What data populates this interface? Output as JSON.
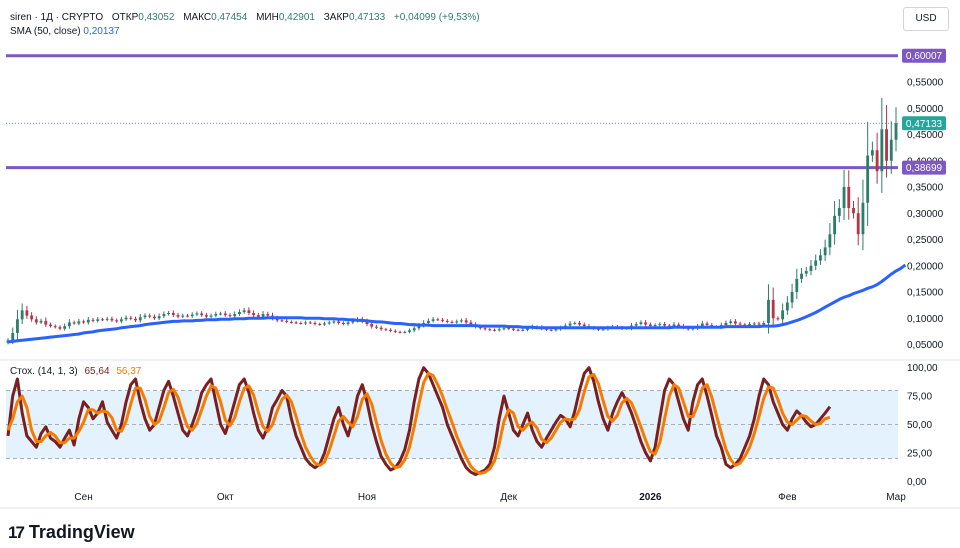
{
  "header": {
    "symbol": "siren · 1Д · CRYPTO",
    "open_label": "ОТКР",
    "open": "0,43052",
    "high_label": "МАКС",
    "high": "0,47454",
    "low_label": "МИН",
    "low": "0,42901",
    "close_label": "ЗАКР",
    "close": "0,47133",
    "change": "+0,04099 (+9,53%)"
  },
  "sma": {
    "label": "SMA (50, close)",
    "value": "0,20137"
  },
  "currency": "USD",
  "stoch": {
    "label": "Стох. (14, 1, 3)",
    "k": "65,64",
    "d": "56,37"
  },
  "brand": "TradingView",
  "colors": {
    "up": "#26a69a",
    "down": "#b2354a",
    "candle_up": "#2e7d6b",
    "sma": "#2962ff",
    "hline": "#7e57c2",
    "stoch_k": "#7a1f1f",
    "stoch_d": "#f57c00",
    "band_fill": "#e3f2fd",
    "price_badge": "#26a69a"
  },
  "chart_data": [
    {
      "type": "candlestick",
      "title": "siren · 1Д · CRYPTO",
      "ylabel": "USD",
      "ylim": [
        0.03,
        0.63
      ],
      "x_tick_labels": [
        "Сен",
        "Окт",
        "Ноя",
        "Дек",
        "2026",
        "Фев",
        "Мар"
      ],
      "x_tick_index": [
        16,
        46,
        76,
        106,
        136,
        165,
        188
      ],
      "y_ticks": [
        {
          "value": 0.05,
          "label": "0,05000"
        },
        {
          "value": 0.1,
          "label": "0,10000"
        },
        {
          "value": 0.15,
          "label": "0,15000"
        },
        {
          "value": 0.2,
          "label": "0,20000"
        },
        {
          "value": 0.25,
          "label": "0,25000"
        },
        {
          "value": 0.3,
          "label": "0,30000"
        },
        {
          "value": 0.35,
          "label": "0,35000"
        },
        {
          "value": 0.4,
          "label": "0,40000"
        },
        {
          "value": 0.45,
          "label": "0,45000"
        },
        {
          "value": 0.5,
          "label": "0,50000"
        },
        {
          "value": 0.55,
          "label": "0,55000"
        }
      ],
      "horizontal_lines": [
        {
          "value": 0.60007,
          "label": "0,60007"
        },
        {
          "value": 0.38699,
          "label": "0,38699"
        }
      ],
      "last_price": {
        "value": 0.47133,
        "label": "0,47133"
      },
      "close_series": [
        0.058,
        0.072,
        0.098,
        0.115,
        0.105,
        0.098,
        0.092,
        0.095,
        0.088,
        0.085,
        0.083,
        0.08,
        0.085,
        0.092,
        0.09,
        0.094,
        0.092,
        0.097,
        0.095,
        0.098,
        0.097,
        0.099,
        0.096,
        0.094,
        0.098,
        0.101,
        0.099,
        0.096,
        0.102,
        0.105,
        0.103,
        0.1,
        0.104,
        0.108,
        0.11,
        0.106,
        0.103,
        0.105,
        0.104,
        0.107,
        0.109,
        0.106,
        0.103,
        0.105,
        0.108,
        0.109,
        0.106,
        0.104,
        0.108,
        0.112,
        0.115,
        0.11,
        0.106,
        0.103,
        0.108,
        0.105,
        0.1,
        0.096,
        0.095,
        0.093,
        0.092,
        0.091,
        0.09,
        0.092,
        0.091,
        0.089,
        0.088,
        0.09,
        0.092,
        0.094,
        0.091,
        0.089,
        0.092,
        0.095,
        0.098,
        0.094,
        0.089,
        0.084,
        0.082,
        0.079,
        0.078,
        0.076,
        0.074,
        0.073,
        0.074,
        0.077,
        0.081,
        0.086,
        0.091,
        0.095,
        0.098,
        0.097,
        0.095,
        0.093,
        0.092,
        0.094,
        0.096,
        0.092,
        0.088,
        0.084,
        0.081,
        0.079,
        0.078,
        0.077,
        0.079,
        0.081,
        0.08,
        0.078,
        0.077,
        0.078,
        0.081,
        0.084,
        0.083,
        0.08,
        0.078,
        0.077,
        0.079,
        0.082,
        0.086,
        0.09,
        0.091,
        0.088,
        0.085,
        0.082,
        0.08,
        0.078,
        0.079,
        0.082,
        0.084,
        0.082,
        0.08,
        0.081,
        0.086,
        0.089,
        0.092,
        0.088,
        0.085,
        0.087,
        0.089,
        0.086,
        0.084,
        0.088,
        0.085,
        0.082,
        0.079,
        0.081,
        0.085,
        0.09,
        0.087,
        0.084,
        0.083,
        0.087,
        0.091,
        0.094,
        0.09,
        0.088,
        0.086,
        0.089,
        0.09,
        0.088,
        0.091,
        0.135,
        0.1,
        0.098,
        0.115,
        0.13,
        0.15,
        0.175,
        0.185,
        0.19,
        0.2,
        0.21,
        0.22,
        0.235,
        0.26,
        0.295,
        0.31,
        0.35,
        0.31,
        0.3,
        0.26,
        0.32,
        0.41,
        0.42,
        0.38,
        0.46,
        0.4,
        0.44,
        0.47133
      ],
      "sma_series": [
        0.055,
        0.056,
        0.057,
        0.058,
        0.059,
        0.06,
        0.061,
        0.062,
        0.063,
        0.064,
        0.065,
        0.066,
        0.067,
        0.068,
        0.069,
        0.07,
        0.072,
        0.073,
        0.074,
        0.076,
        0.077,
        0.078,
        0.079,
        0.08,
        0.082,
        0.083,
        0.084,
        0.085,
        0.086,
        0.088,
        0.089,
        0.09,
        0.091,
        0.092,
        0.093,
        0.094,
        0.094,
        0.095,
        0.095,
        0.095,
        0.096,
        0.096,
        0.097,
        0.097,
        0.097,
        0.098,
        0.098,
        0.098,
        0.099,
        0.099,
        0.099,
        0.1,
        0.1,
        0.1,
        0.1,
        0.101,
        0.101,
        0.101,
        0.101,
        0.101,
        0.101,
        0.101,
        0.101,
        0.1,
        0.1,
        0.1,
        0.1,
        0.099,
        0.099,
        0.099,
        0.098,
        0.098,
        0.097,
        0.097,
        0.096,
        0.096,
        0.095,
        0.094,
        0.093,
        0.093,
        0.092,
        0.091,
        0.09,
        0.09,
        0.089,
        0.088,
        0.088,
        0.087,
        0.087,
        0.087,
        0.086,
        0.086,
        0.086,
        0.086,
        0.086,
        0.086,
        0.086,
        0.086,
        0.086,
        0.086,
        0.085,
        0.085,
        0.085,
        0.085,
        0.085,
        0.085,
        0.084,
        0.084,
        0.084,
        0.083,
        0.083,
        0.083,
        0.082,
        0.082,
        0.082,
        0.082,
        0.082,
        0.082,
        0.082,
        0.082,
        0.082,
        0.082,
        0.082,
        0.082,
        0.082,
        0.082,
        0.082,
        0.082,
        0.082,
        0.082,
        0.082,
        0.082,
        0.082,
        0.082,
        0.082,
        0.082,
        0.082,
        0.082,
        0.082,
        0.082,
        0.082,
        0.083,
        0.083,
        0.083,
        0.083,
        0.083,
        0.083,
        0.083,
        0.083,
        0.083,
        0.083,
        0.083,
        0.084,
        0.084,
        0.084,
        0.084,
        0.084,
        0.084,
        0.084,
        0.084,
        0.085,
        0.085,
        0.085,
        0.086,
        0.088,
        0.09,
        0.093,
        0.096,
        0.099,
        0.103,
        0.107,
        0.111,
        0.116,
        0.121,
        0.126,
        0.131,
        0.136,
        0.14,
        0.143,
        0.147,
        0.15,
        0.153,
        0.157,
        0.16,
        0.164,
        0.17,
        0.177,
        0.184,
        0.19,
        0.195,
        0.20137
      ]
    },
    {
      "type": "line",
      "title": "Стох. (14, 1, 3)",
      "ylim": [
        -5,
        105
      ],
      "y_ticks": [
        {
          "value": 0,
          "label": "0,00"
        },
        {
          "value": 25,
          "label": "25,00"
        },
        {
          "value": 50,
          "label": "50,00"
        },
        {
          "value": 75,
          "label": "75,00"
        },
        {
          "value": 100,
          "label": "100,00"
        }
      ],
      "band": [
        20,
        80
      ],
      "series": [
        {
          "name": "%K",
          "last": 65.64,
          "values": [
            40,
            75,
            90,
            60,
            40,
            35,
            30,
            42,
            48,
            38,
            35,
            30,
            38,
            45,
            32,
            55,
            70,
            65,
            55,
            60,
            70,
            52,
            45,
            38,
            50,
            70,
            85,
            90,
            70,
            55,
            45,
            50,
            65,
            80,
            88,
            75,
            60,
            45,
            40,
            50,
            62,
            78,
            85,
            90,
            70,
            50,
            42,
            55,
            70,
            85,
            90,
            78,
            60,
            45,
            38,
            48,
            65,
            72,
            80,
            75,
            55,
            40,
            30,
            20,
            15,
            12,
            15,
            25,
            40,
            55,
            65,
            50,
            40,
            55,
            75,
            85,
            70,
            50,
            35,
            22,
            15,
            10,
            12,
            18,
            28,
            45,
            70,
            90,
            100,
            95,
            85,
            75,
            65,
            50,
            40,
            30,
            20,
            12,
            8,
            6,
            8,
            10,
            15,
            30,
            55,
            75,
            60,
            45,
            40,
            50,
            60,
            45,
            35,
            30,
            38,
            45,
            52,
            58,
            55,
            48,
            62,
            80,
            95,
            100,
            88,
            70,
            55,
            45,
            60,
            70,
            78,
            70,
            60,
            48,
            35,
            25,
            18,
            30,
            55,
            80,
            90,
            85,
            70,
            55,
            45,
            70,
            85,
            90,
            75,
            58,
            40,
            30,
            15,
            12,
            15,
            20,
            30,
            40,
            55,
            75,
            90,
            85,
            70,
            60,
            50,
            45,
            55,
            62,
            58,
            52,
            48,
            50,
            55,
            60,
            65.64
          ]
        },
        {
          "name": "%D",
          "last": 56.37,
          "values": [
            45,
            55,
            70,
            75,
            65,
            45,
            35,
            35,
            40,
            43,
            40,
            34,
            34,
            38,
            38,
            44,
            52,
            63,
            63,
            60,
            62,
            61,
            56,
            45,
            44,
            53,
            68,
            82,
            82,
            72,
            57,
            50,
            53,
            65,
            78,
            81,
            74,
            60,
            48,
            45,
            51,
            63,
            75,
            84,
            82,
            70,
            54,
            49,
            56,
            70,
            82,
            84,
            76,
            61,
            48,
            44,
            50,
            62,
            72,
            76,
            70,
            57,
            42,
            30,
            22,
            16,
            14,
            17,
            27,
            40,
            53,
            57,
            52,
            48,
            57,
            72,
            77,
            68,
            52,
            36,
            24,
            16,
            12,
            13,
            19,
            30,
            48,
            68,
            87,
            95,
            93,
            85,
            75,
            63,
            52,
            40,
            30,
            21,
            13,
            9,
            7,
            8,
            11,
            18,
            33,
            53,
            63,
            60,
            48,
            45,
            50,
            52,
            47,
            37,
            34,
            38,
            45,
            52,
            55,
            54,
            55,
            63,
            79,
            92,
            94,
            86,
            71,
            57,
            53,
            58,
            69,
            73,
            69,
            59,
            48,
            36,
            26,
            24,
            34,
            55,
            75,
            85,
            82,
            70,
            57,
            57,
            67,
            82,
            85,
            74,
            58,
            43,
            28,
            19,
            14,
            16,
            22,
            30,
            42,
            57,
            73,
            83,
            82,
            72,
            60,
            52,
            50,
            54,
            58,
            57,
            53,
            50,
            51,
            55,
            56.37
          ]
        }
      ]
    }
  ]
}
